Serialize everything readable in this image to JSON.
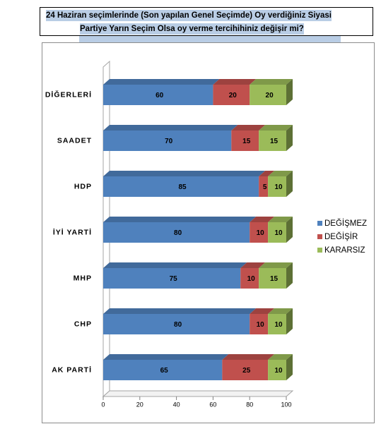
{
  "title": {
    "line1": "24 Haziran seçimlerinde (Son yapılan Genel Seçimde) Oy verdiğiniz Siyasi",
    "line2": "Partiye Yarın Seçim Olsa oy verme tercihihiniz değişir mi?"
  },
  "chart_data": {
    "type": "bar",
    "orientation": "horizontal",
    "stacked": true,
    "style_3d": true,
    "categories": [
      "DİĞERLERİ",
      "SAADET",
      "HDP",
      "İYİ YARTİ",
      "MHP",
      "CHP",
      "AK PARTİ"
    ],
    "series": [
      {
        "name": "DEĞİŞMEZ",
        "color": "#4f81bd",
        "values": [
          60,
          70,
          85,
          80,
          75,
          80,
          65
        ]
      },
      {
        "name": "DEĞİŞİR",
        "color": "#c0504d",
        "values": [
          20,
          15,
          5,
          10,
          10,
          10,
          25
        ]
      },
      {
        "name": "KARARSIZ",
        "color": "#9bbb59",
        "values": [
          20,
          15,
          10,
          10,
          15,
          10,
          10
        ]
      }
    ],
    "xlim": [
      0,
      100
    ],
    "x_ticks": [
      "0",
      "20",
      "40",
      "60",
      "80",
      "100"
    ],
    "grid": false,
    "legend_position": "right",
    "data_labels": true
  }
}
